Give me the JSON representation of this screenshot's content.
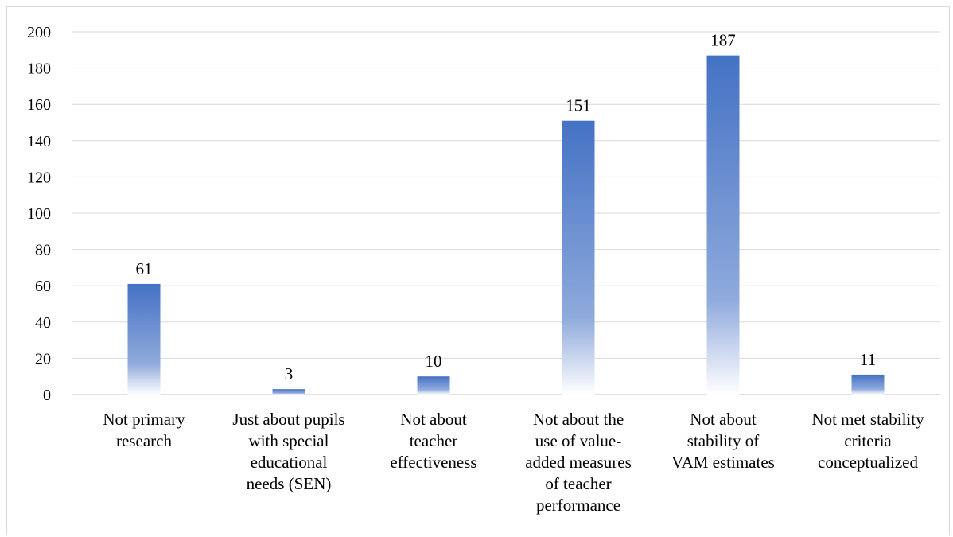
{
  "chart_data": {
    "type": "bar",
    "categories": [
      [
        "Not primary",
        "research"
      ],
      [
        "Just about pupils",
        "with special",
        "educational",
        "needs (SEN)"
      ],
      [
        "Not about",
        "teacher",
        "effectiveness"
      ],
      [
        "Not about the",
        "use of value-",
        "added measures",
        "of teacher",
        "performance"
      ],
      [
        "Not about",
        "stability of",
        "VAM estimates"
      ],
      [
        "Not met stability",
        "criteria",
        "conceptualized"
      ]
    ],
    "values": [
      61,
      3,
      10,
      151,
      187,
      11
    ],
    "data_labels": [
      "61",
      "3",
      "10",
      "151",
      "187",
      "11"
    ],
    "ylim": [
      0,
      200
    ],
    "yticks": [
      0,
      20,
      40,
      60,
      80,
      100,
      120,
      140,
      160,
      180,
      200
    ],
    "grid": true,
    "legend": "none",
    "colors": {
      "bar_top": "#4472c4",
      "bar_mid": "#8faadc",
      "bar_bottom": "#ffffff",
      "grid": "#d9d9d9"
    }
  }
}
